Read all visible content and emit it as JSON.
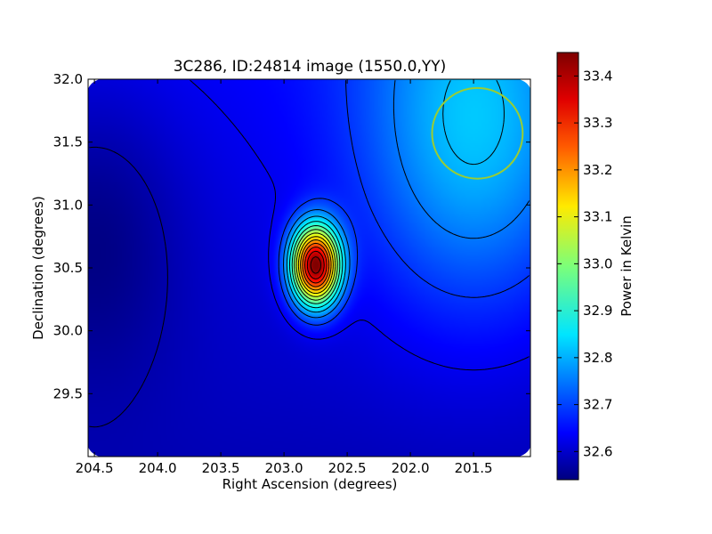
{
  "chart_data": {
    "type": "heatmap",
    "title": "3C286, ID:24814 image (1550.0,YY)",
    "xlabel": "Right Ascension (degrees)",
    "ylabel": "Declination (degrees)",
    "xlim": [
      204.55,
      201.05
    ],
    "ylim": [
      29.0,
      32.0
    ],
    "x_ticks": [
      "204.5",
      "204.0",
      "203.5",
      "203.0",
      "202.5",
      "202.0",
      "201.5"
    ],
    "y_ticks": [
      "29.5",
      "30.0",
      "30.5",
      "31.0",
      "31.5",
      "32.0"
    ],
    "colormap": "jet",
    "colorbar": {
      "label": "Power in Kelvin",
      "range": [
        32.54,
        33.45
      ],
      "ticks": [
        "32.6",
        "32.7",
        "32.8",
        "32.9",
        "33.0",
        "33.1",
        "33.2",
        "33.3",
        "33.4"
      ]
    },
    "peak": {
      "ra": 202.75,
      "dec": 30.52,
      "value": 33.44
    },
    "background_min": {
      "ra": 204.5,
      "dec": 30.8,
      "value": 32.55
    },
    "high_region": {
      "ra": 201.5,
      "dec": 31.6,
      "value": 32.8
    },
    "beam_circle": {
      "ra": 201.47,
      "dec": 31.57,
      "radius_deg": 0.36,
      "color": "#9acd32"
    },
    "contour_color": "#000000"
  }
}
